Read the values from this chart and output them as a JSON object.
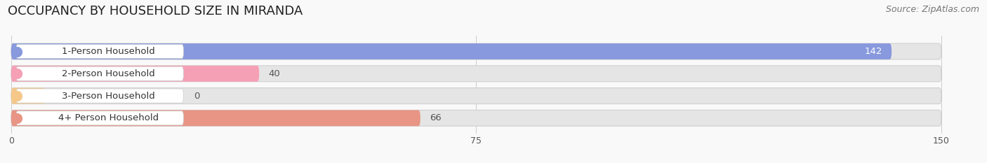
{
  "title": "OCCUPANCY BY HOUSEHOLD SIZE IN MIRANDA",
  "source": "Source: ZipAtlas.com",
  "categories": [
    "1-Person Household",
    "2-Person Household",
    "3-Person Household",
    "4+ Person Household"
  ],
  "values": [
    142,
    40,
    0,
    66
  ],
  "bar_colors": [
    "#8899dd",
    "#f5a0b5",
    "#f5c88a",
    "#e89585"
  ],
  "bar_bg_color": "#e5e5e5",
  "xlim": [
    0,
    150
  ],
  "xticks": [
    0,
    75,
    150
  ],
  "title_fontsize": 13,
  "source_fontsize": 9,
  "label_fontsize": 9.5,
  "value_fontsize": 9.5,
  "background_color": "#f9f9f9",
  "bar_height": 0.72,
  "bar_max": 150
}
